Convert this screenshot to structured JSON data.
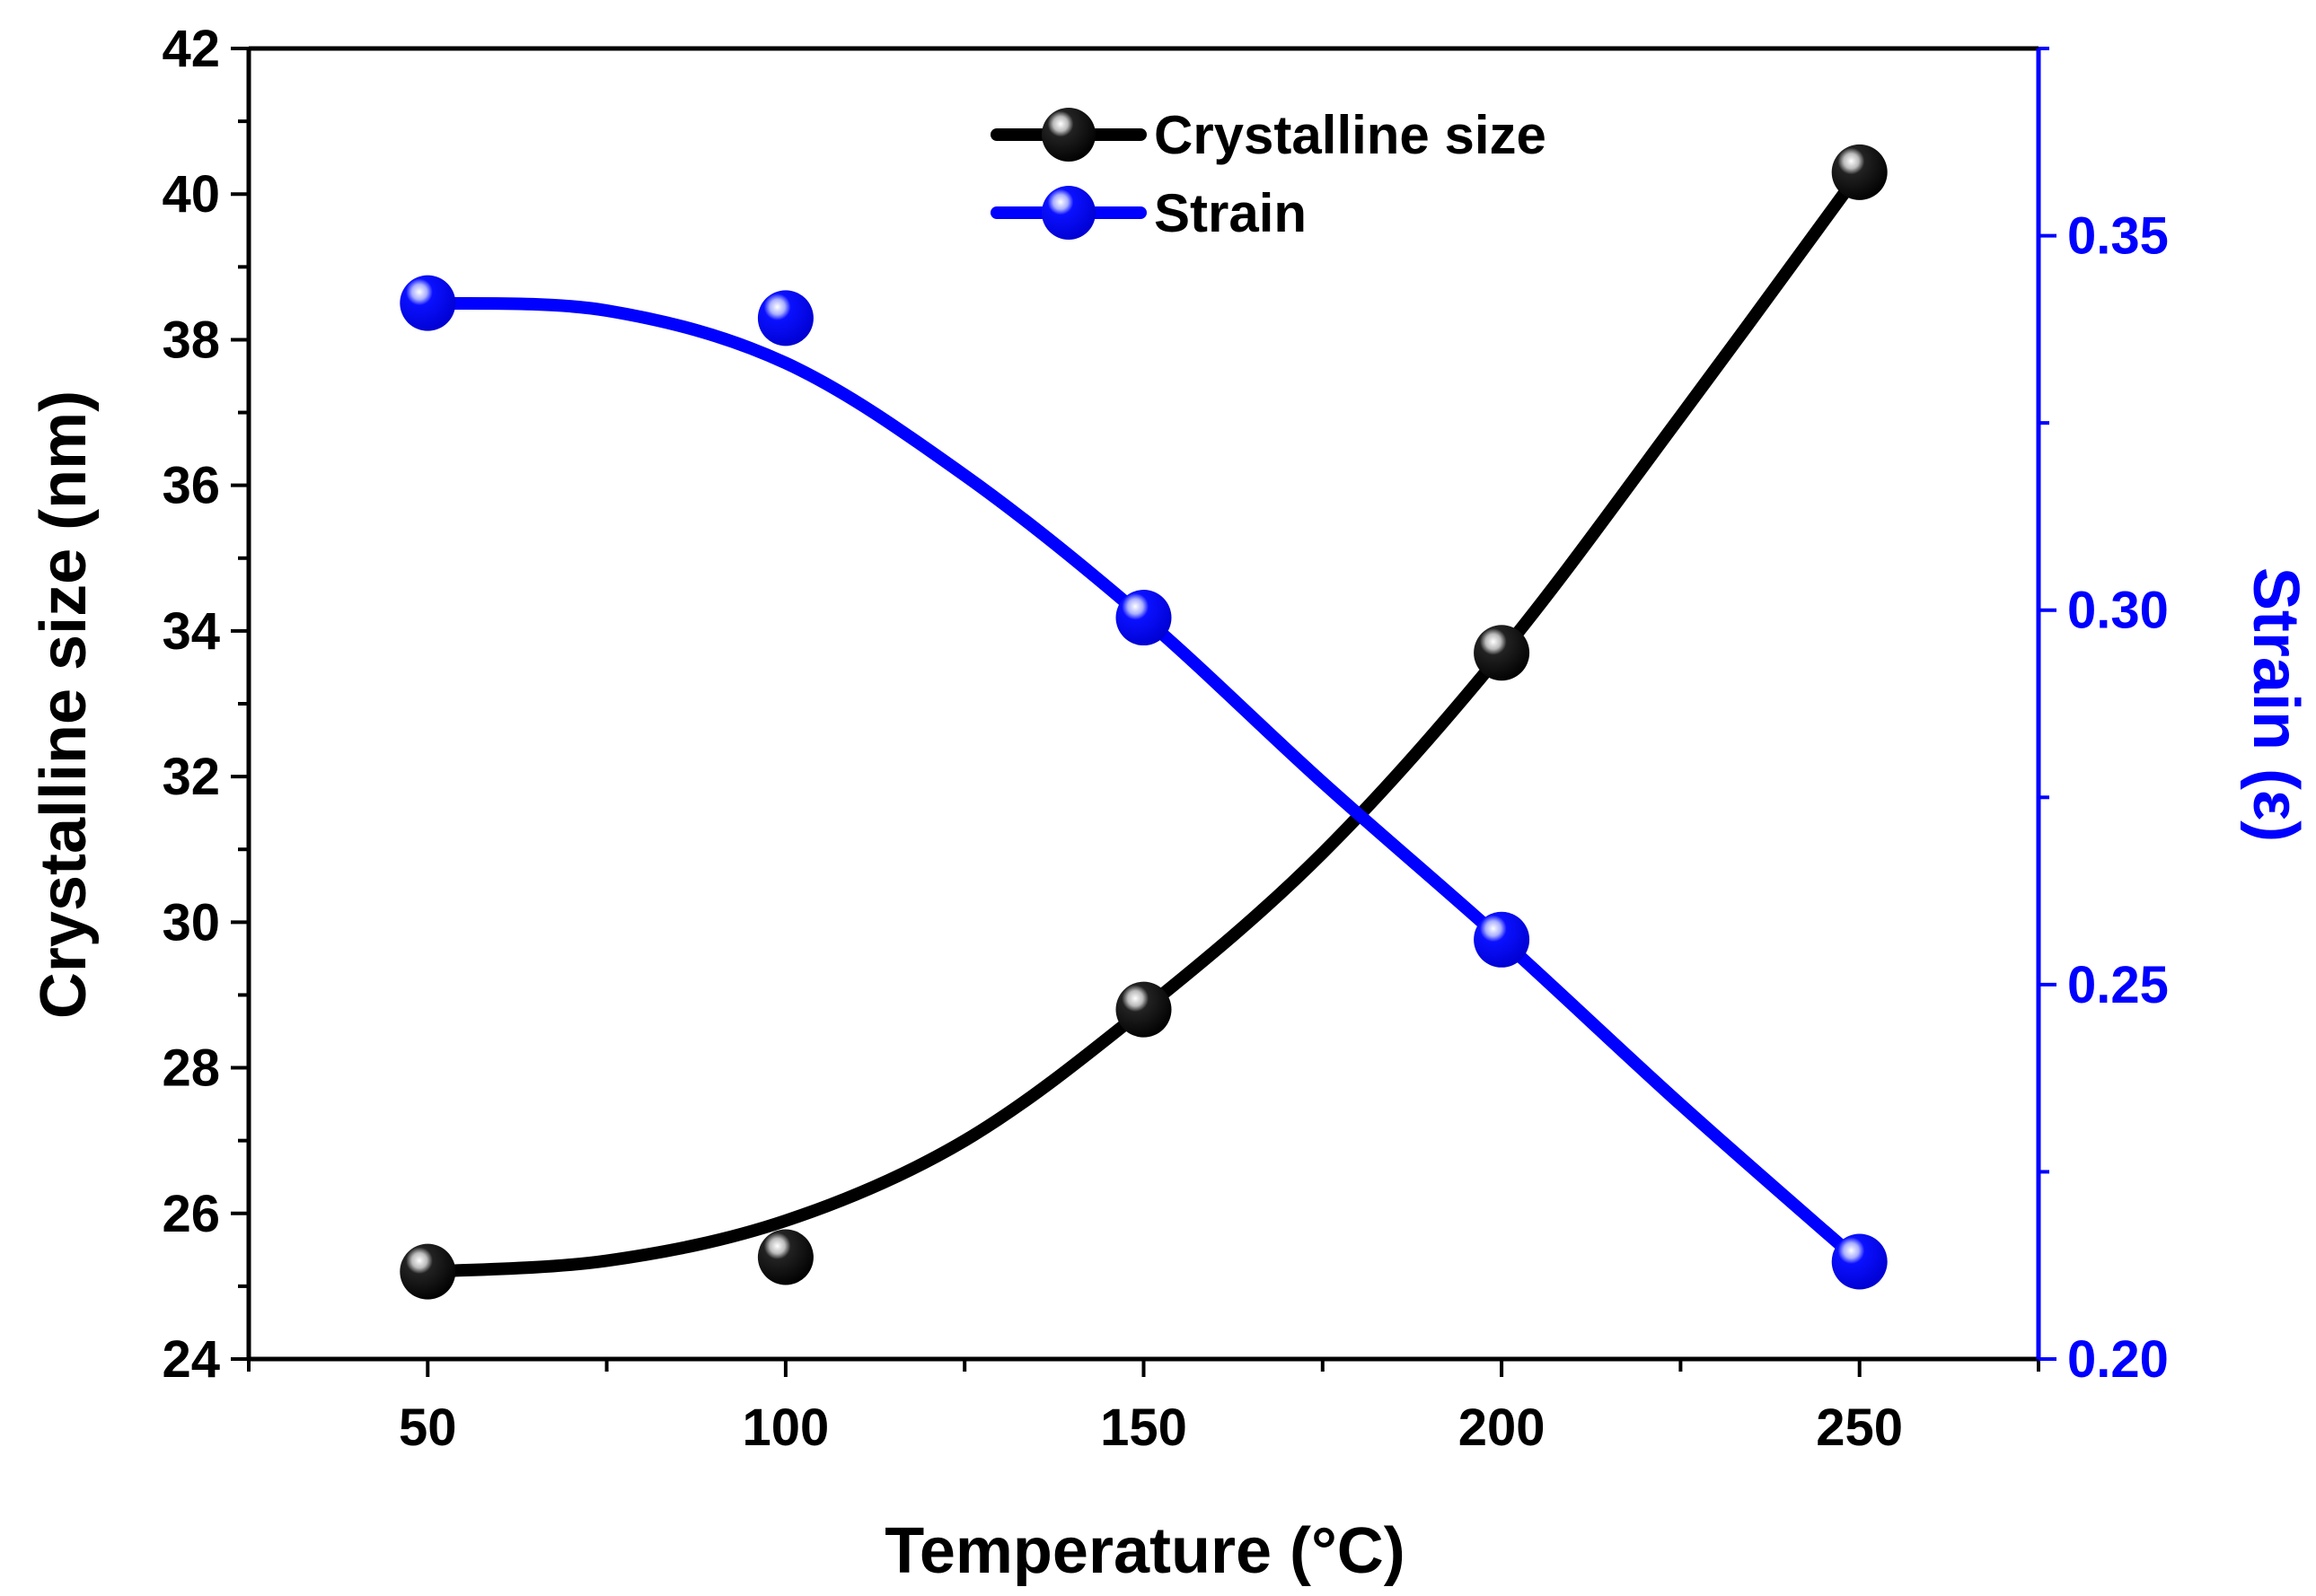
{
  "chart_data": {
    "type": "line",
    "x": [
      50,
      100,
      150,
      200,
      250
    ],
    "xlabel": "Temperature (°C)",
    "xlim": [
      25,
      275
    ],
    "x_ticks": [
      50,
      100,
      150,
      200,
      250
    ],
    "y_left": {
      "label": "Crystalline size (nm)",
      "lim": [
        24,
        42
      ],
      "ticks": [
        24,
        26,
        28,
        30,
        32,
        34,
        36,
        38,
        40,
        42
      ]
    },
    "y_right": {
      "label": "Strain (ε)",
      "lim": [
        0.2,
        0.375
      ],
      "ticks": [
        0.2,
        0.25,
        0.3,
        0.35
      ],
      "tick_labels": [
        "0.20",
        "0.25",
        "0.30",
        "0.35"
      ]
    },
    "series": [
      {
        "name": "Crystalline size",
        "axis": "left",
        "color": "#000000",
        "marker_color": "#000000",
        "values": [
          25.2,
          25.4,
          28.8,
          33.7,
          40.3
        ],
        "fit_curve": [
          25.2,
          25.35,
          25.9,
          27.0,
          28.8,
          30.95,
          33.7,
          36.95,
          40.3
        ]
      },
      {
        "name": "Strain",
        "axis": "right",
        "color": "#0000ff",
        "marker_color": "#0000ff",
        "values": [
          0.341,
          0.339,
          0.299,
          0.256,
          0.213
        ],
        "fit_curve": [
          0.341,
          0.34,
          0.333,
          0.318,
          0.299,
          0.277,
          0.256,
          0.234,
          0.213
        ]
      }
    ],
    "legend_position": "top-center",
    "colors": {
      "left_axis": "#000000",
      "right_axis": "#0000ff"
    }
  }
}
